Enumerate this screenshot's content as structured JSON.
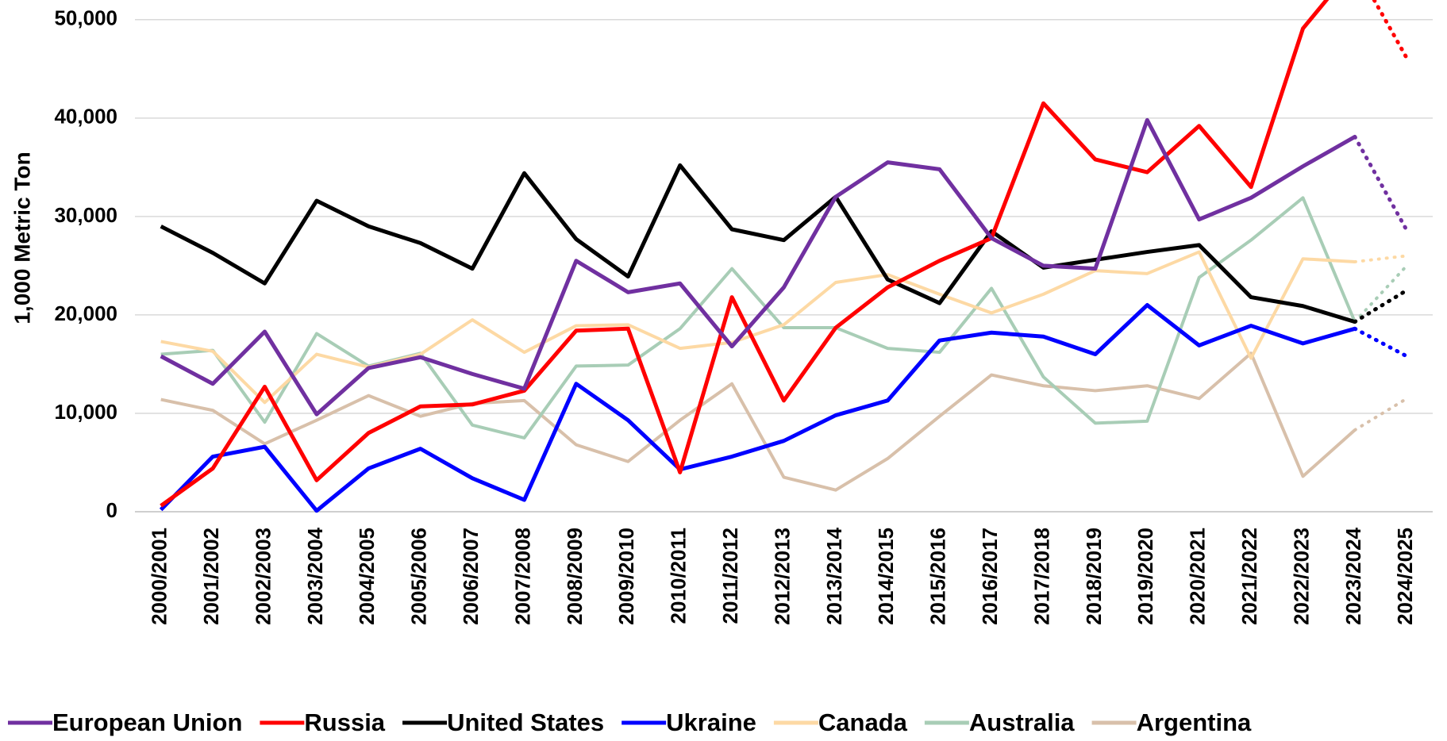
{
  "chart_data": {
    "type": "line",
    "y_label": "1,000 Metric Ton",
    "categories": [
      "2000/2001",
      "2001/2002",
      "2002/2003",
      "2003/2004",
      "2004/2005",
      "2005/2006",
      "2006/2007",
      "2007/2008",
      "2008/2009",
      "2009/2010",
      "2010/2011",
      "2011/2012",
      "2012/2013",
      "2013/2014",
      "2014/2015",
      "2015/2016",
      "2016/2017",
      "2017/2018",
      "2018/2019",
      "2019/2020",
      "2020/2021",
      "2021/2022",
      "2022/2023",
      "2023/2024",
      "2024/2025"
    ],
    "series": [
      {
        "name": "European Union",
        "color": "#7030a0",
        "values": [
          15800,
          13000,
          18300,
          9900,
          14600,
          15700,
          14000,
          12500,
          25500,
          22300,
          23200,
          16800,
          22800,
          32000,
          35500,
          34800,
          27800,
          25000,
          24700,
          39800,
          29700,
          31900,
          35100,
          38100,
          28600
        ]
      },
      {
        "name": "Russia",
        "color": "#ff0000",
        "values": [
          600,
          4400,
          12700,
          3200,
          8000,
          10700,
          10900,
          12300,
          18400,
          18600,
          4000,
          21800,
          11300,
          18700,
          22800,
          25500,
          27800,
          41500,
          35800,
          34500,
          39200,
          33000,
          49100,
          55500,
          46100
        ]
      },
      {
        "name": "United States",
        "color": "#000000",
        "values": [
          29000,
          26300,
          23200,
          31600,
          29000,
          27300,
          24700,
          34400,
          27700,
          23900,
          35200,
          28700,
          27600,
          32000,
          23600,
          21200,
          28500,
          24800,
          25600,
          26400,
          27100,
          21800,
          20900,
          19300,
          22500
        ]
      },
      {
        "name": "Ukraine",
        "color": "#0000ff",
        "values": [
          200,
          5600,
          6600,
          100,
          4400,
          6400,
          3400,
          1200,
          13000,
          9300,
          4300,
          5600,
          7200,
          9800,
          11300,
          17400,
          18200,
          17800,
          16000,
          21000,
          16900,
          18900,
          17100,
          18600,
          15800
        ]
      },
      {
        "name": "Canada",
        "color": "#fdd9a4",
        "values": [
          17300,
          16300,
          11100,
          16000,
          14700,
          16000,
          19500,
          16200,
          18900,
          19000,
          16600,
          17200,
          19000,
          23300,
          24100,
          22100,
          20200,
          22100,
          24500,
          24200,
          26400,
          15600,
          25700,
          25400,
          26000
        ]
      },
      {
        "name": "Australia",
        "color": "#a8cdb6",
        "values": [
          16000,
          16400,
          9100,
          18100,
          14800,
          16100,
          8800,
          7500,
          14800,
          14900,
          18600,
          24700,
          18700,
          18700,
          16600,
          16200,
          22700,
          13700,
          9000,
          9200,
          23800,
          27600,
          31900,
          19300,
          25000
        ]
      },
      {
        "name": "Argentina",
        "color": "#d8c0aa",
        "values": [
          11400,
          10300,
          6900,
          9300,
          11800,
          9700,
          11000,
          11300,
          6800,
          5100,
          9300,
          13000,
          3500,
          2200,
          5400,
          9700,
          13900,
          12800,
          12300,
          12800,
          11500,
          16100,
          3600,
          8300,
          11500
        ]
      }
    ],
    "ylim": [
      0,
      52000
    ],
    "yticks": [
      0,
      {
        "value": 10000,
        "label": "10,000"
      },
      {
        "value": 20000,
        "label": "20,000"
      },
      {
        "value": 30000,
        "label": "30,000"
      },
      {
        "value": 40000,
        "label": "40,000"
      },
      {
        "value": 50000,
        "label": "50,000"
      }
    ],
    "grid": true,
    "last_segment": "dotted",
    "legend": "bottom"
  }
}
